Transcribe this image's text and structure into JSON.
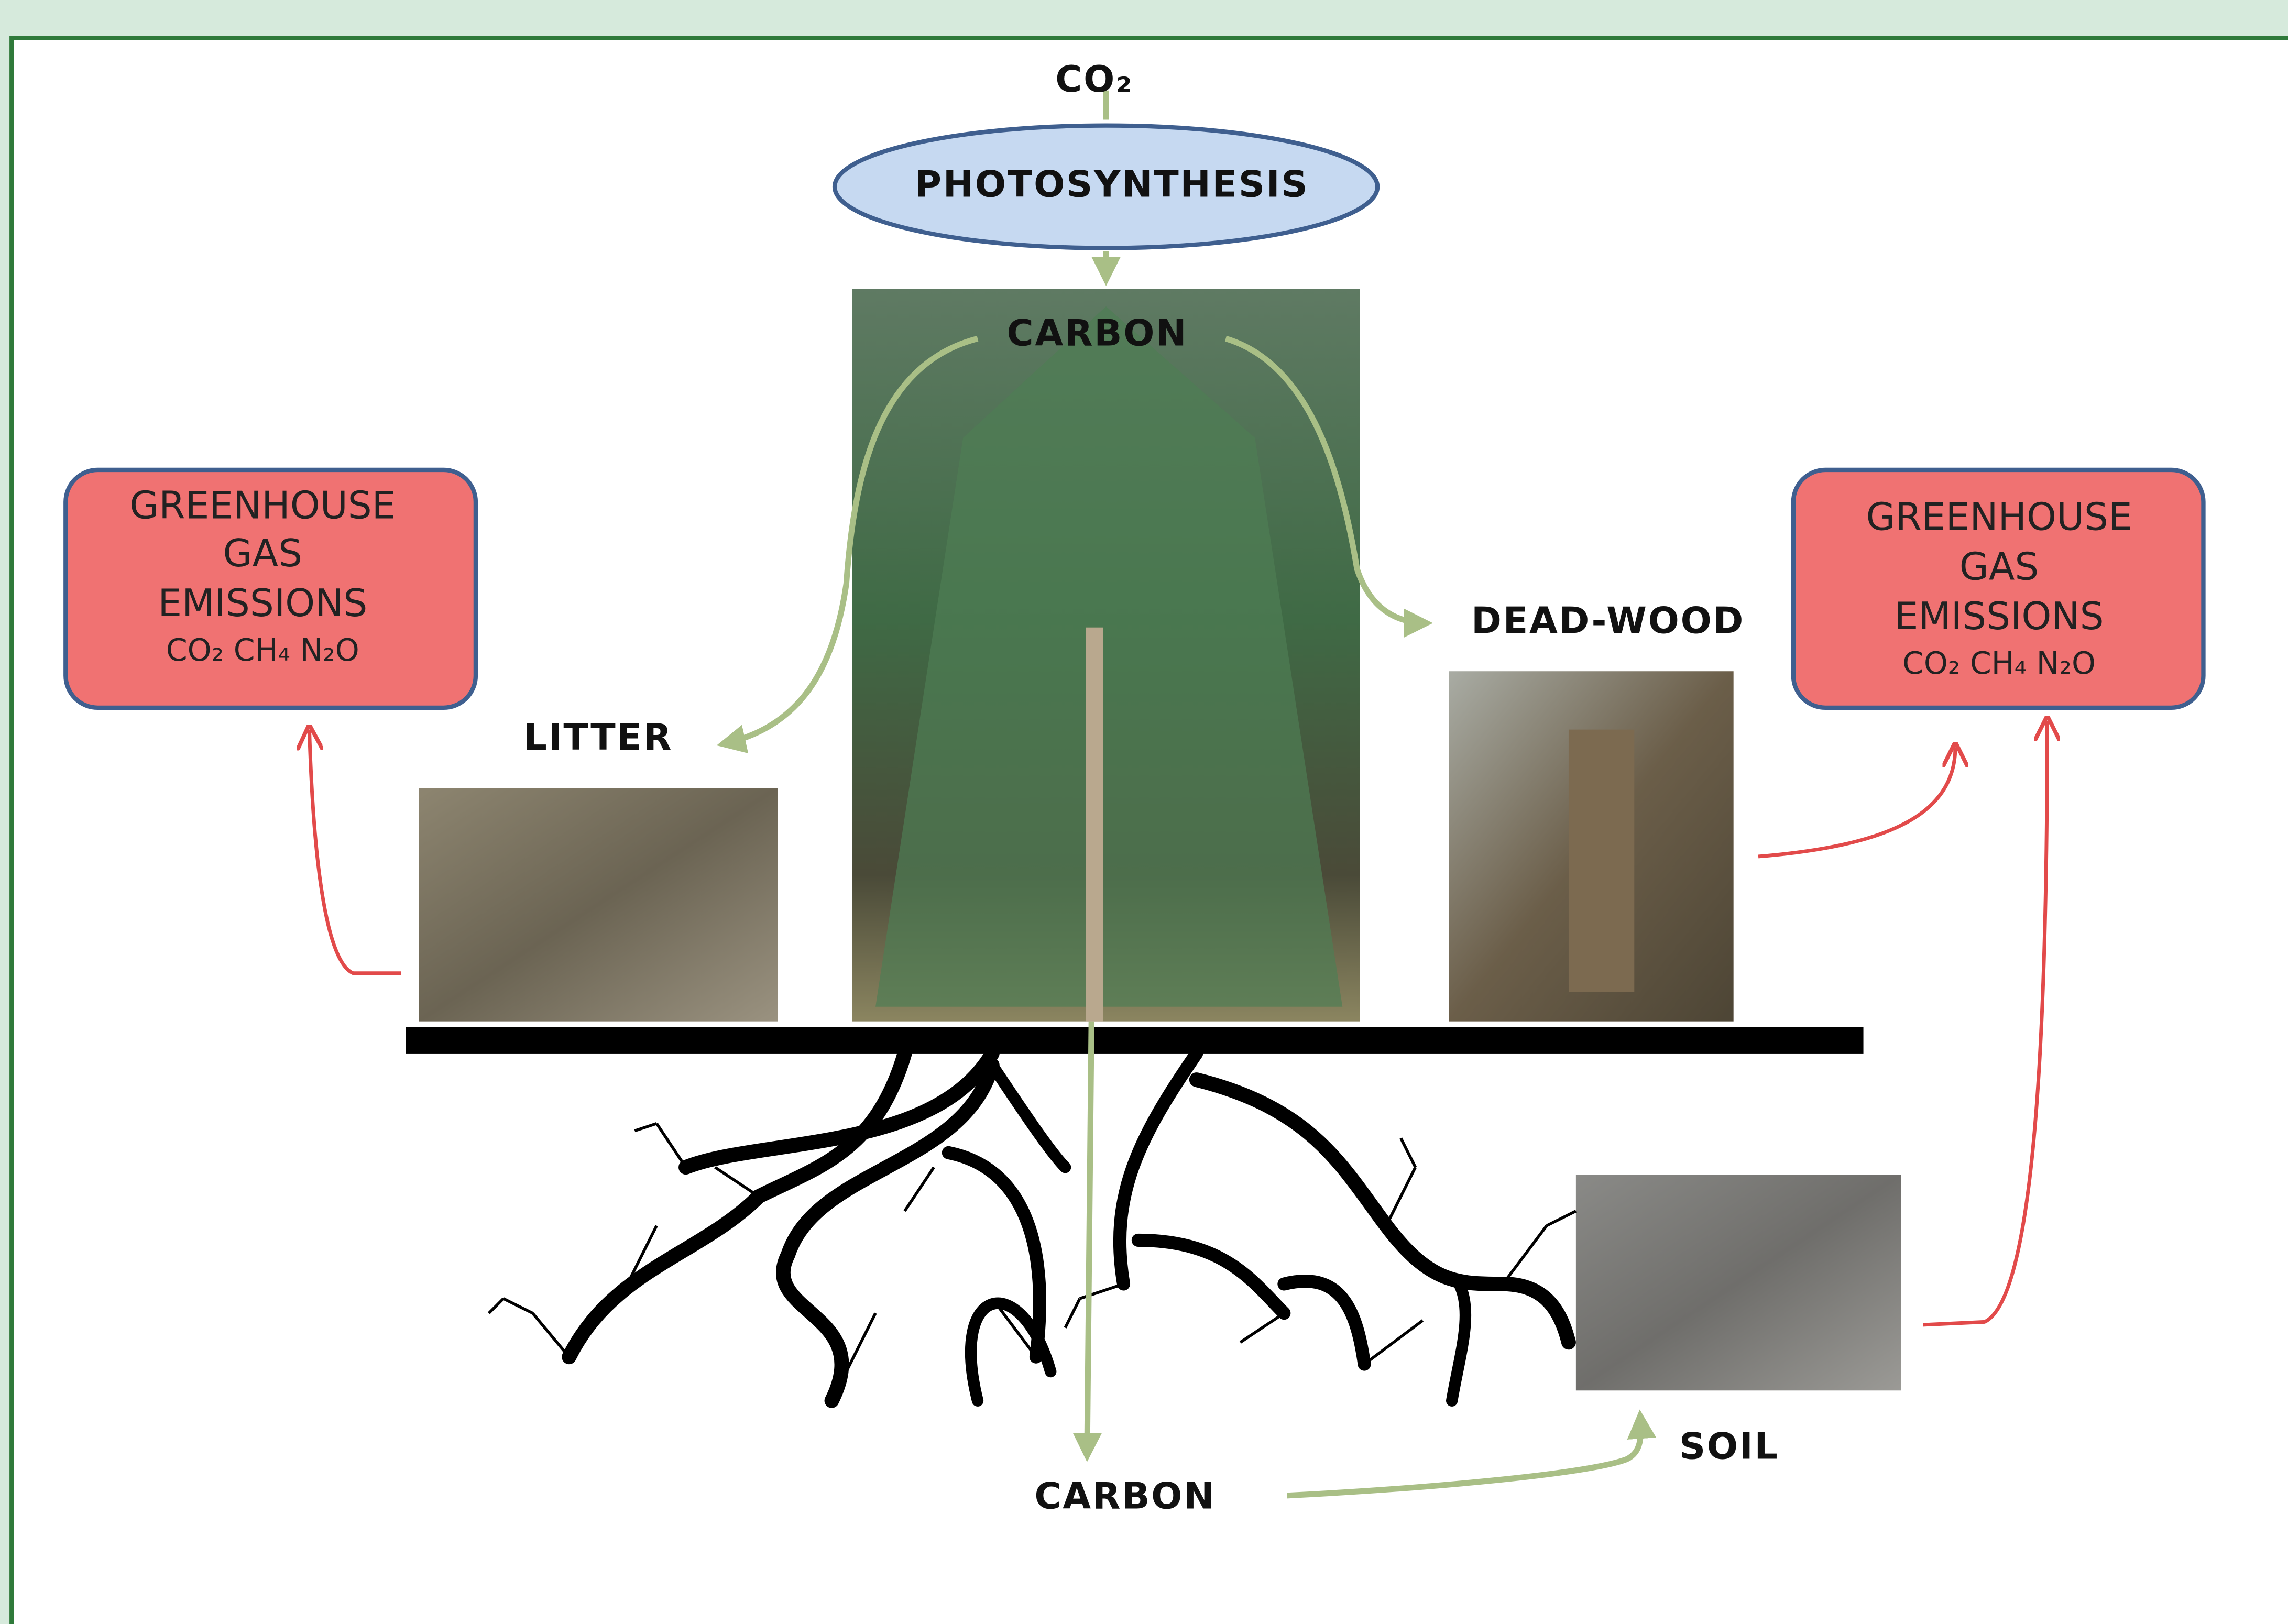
{
  "co2_label": "CO₂",
  "photosynthesis": {
    "label": "PHOTOSYNTHESIS"
  },
  "tree": {
    "label": "CARBON"
  },
  "litter": {
    "label": "LITTER"
  },
  "dead_wood": {
    "label": "DEAD-WOOD"
  },
  "soil": {
    "label": "SOIL"
  },
  "soil_carbon": {
    "label": "CARBON"
  },
  "emissions": [
    {
      "lines": [
        "GREENHOUSE",
        "GAS",
        "EMISSIONS"
      ],
      "gases": "CO₂ CH₄ N₂O"
    },
    {
      "lines": [
        "GREENHOUSE",
        "GAS",
        "EMISSIONS"
      ],
      "gases": "CO₂ CH₄ N₂O"
    }
  ]
}
